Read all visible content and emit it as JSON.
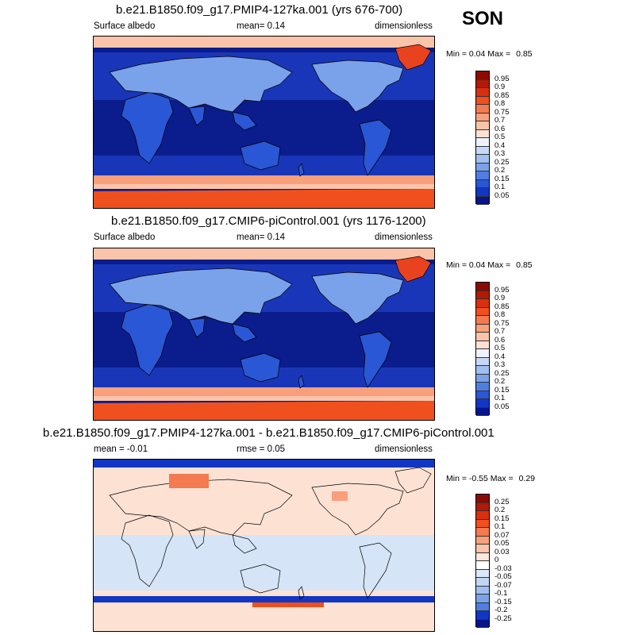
{
  "season": "SON",
  "panels": [
    {
      "title": "b.e21.B1850.f09_g17.PMIP4-127ka.001 (yrs 676-700)",
      "left_label": "Surface albedo",
      "center_label": "mean=   0.14",
      "right_label": "dimensionless",
      "min_label": "Min =",
      "min_value": "0.04",
      "max_label": "Max =",
      "max_value": "0.85",
      "kind": "abs",
      "greenland_color": "#e8431e"
    },
    {
      "title": "b.e21.B1850.f09_g17.CMIP6-piControl.001 (yrs 1176-1200)",
      "left_label": "Surface albedo",
      "center_label": "mean=   0.14",
      "right_label": "dimensionless",
      "min_label": "Min =",
      "min_value": "0.04",
      "max_label": "Max =",
      "max_value": "0.85",
      "kind": "abs",
      "greenland_color": "#e8431e"
    },
    {
      "title": "b.e21.B1850.f09_g17.PMIP4-127ka.001 - b.e21.B1850.f09_g17.CMIP6-piControl.001",
      "left_label": "mean =   -0.01",
      "center_label": "rmse =   0.05",
      "right_label": "dimensionless",
      "min_label": "Min =",
      "min_value": "-0.55",
      "max_label": "Max =",
      "max_value": "0.29",
      "kind": "diff"
    }
  ],
  "colorbars": {
    "abs": {
      "labels": [
        "0.95",
        "0.9",
        "0.85",
        "0.8",
        "0.75",
        "0.7",
        "0.6",
        "0.5",
        "0.4",
        "0.3",
        "0.25",
        "0.2",
        "0.15",
        "0.1",
        "0.05"
      ],
      "colors": [
        "#8c0a02",
        "#b01a06",
        "#d8300e",
        "#f0501e",
        "#f47a50",
        "#f8a07c",
        "#fac4aa",
        "#fde2d4",
        "#eef3fb",
        "#c6d8f5",
        "#a0bff0",
        "#7aa2ea",
        "#4f7de2",
        "#2a57d6",
        "#1236c4",
        "#07148a"
      ]
    },
    "diff": {
      "labels": [
        "0.25",
        "0.2",
        "0.15",
        "0.1",
        "0.07",
        "0.05",
        "0.03",
        "0",
        "-0.03",
        "-0.05",
        "-0.07",
        "-0.1",
        "-0.15",
        "-0.2",
        "-0.25"
      ],
      "colors": [
        "#8c0a02",
        "#b01a06",
        "#d8300e",
        "#f0501e",
        "#f47a50",
        "#f8a07c",
        "#fac4aa",
        "#fde7da",
        "#ffffff",
        "#dbe8f8",
        "#c2d6f3",
        "#a0bff0",
        "#7aa2ea",
        "#4f7de2",
        "#1236c4",
        "#07148a"
      ]
    }
  },
  "map_colors": {
    "ocean_deep": "#0b1c8c",
    "ocean_mid": "#1a36b8",
    "land": "#2a57d6",
    "land_bright": "#7aa2ea",
    "snow_bright": "#c6d8f5",
    "antarctic": "#f0501e",
    "sea_ice_edge": "#f8a07c",
    "arctic_band": "#fac4aa",
    "diff_pos": "#fde2d4",
    "diff_neg": "#d6e4f7",
    "diff_neg_strong": "#1236c4"
  }
}
